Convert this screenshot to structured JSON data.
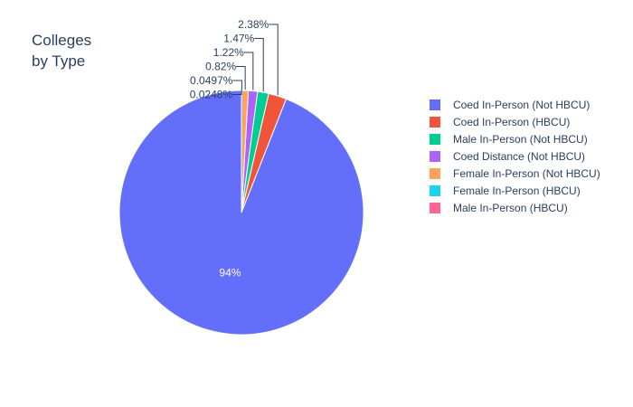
{
  "chart_data": {
    "type": "pie",
    "title": [
      "Colleges",
      "by Type"
    ],
    "slices": [
      {
        "label": "Coed In-Person (Not HBCU)",
        "percent": 94.0,
        "text": "94%",
        "color": "#636efa",
        "text_position": "inside"
      },
      {
        "label": "Coed In-Person (HBCU)",
        "percent": 2.38,
        "text": "2.38%",
        "color": "#EF553B",
        "text_position": "outside"
      },
      {
        "label": "Male In-Person (Not HBCU)",
        "percent": 1.47,
        "text": "1.47%",
        "color": "#00cc96",
        "text_position": "outside"
      },
      {
        "label": "Coed Distance (Not HBCU)",
        "percent": 1.22,
        "text": "1.22%",
        "color": "#ab63fa",
        "text_position": "outside"
      },
      {
        "label": "Female In-Person (Not HBCU)",
        "percent": 0.82,
        "text": "0.82%",
        "color": "#FFA15A",
        "text_position": "outside"
      },
      {
        "label": "Female In-Person (HBCU)",
        "percent": 0.0497,
        "text": "0.0497%",
        "color": "#19d3f3",
        "text_position": "outside"
      },
      {
        "label": "Male In-Person (HBCU)",
        "percent": 0.0248,
        "text": "0.0248%",
        "color": "#FF6692",
        "text_position": "outside"
      }
    ],
    "legend_position": "right",
    "direction": "clockwise",
    "start_angle": "top"
  }
}
